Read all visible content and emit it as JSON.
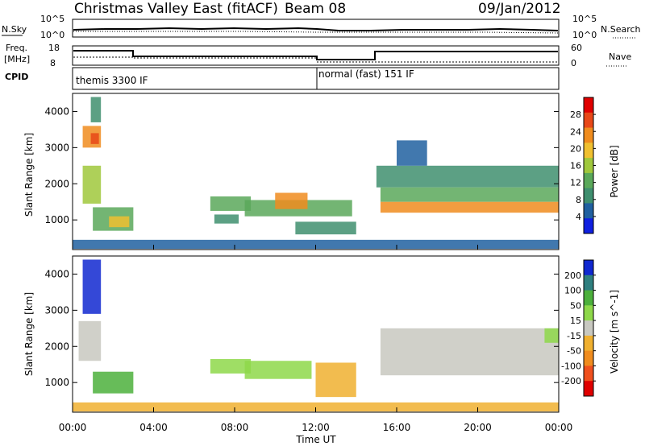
{
  "header": {
    "station": "Christmas Valley East (fitACF)",
    "beam": "Beam 08",
    "date": "09/Jan/2012"
  },
  "noise_panel": {
    "left_label": "N.Sky",
    "right_label": "N.Search",
    "left_ticks": [
      "10^5",
      "10^0"
    ],
    "right_ticks": [
      "10^5",
      "10^0"
    ]
  },
  "freq_panel": {
    "left_label_1": "Freq.",
    "left_label_2": "[MHz]",
    "left_ticks": [
      "18",
      "8"
    ],
    "right_label": "Nave",
    "right_ticks": [
      "60",
      "0"
    ]
  },
  "cpid_panel": {
    "label": "CPID",
    "modes": [
      {
        "name": "themis 3300 IF",
        "start_ut": 0,
        "end_ut": 12
      },
      {
        "name": "normal (fast) 151 IF",
        "start_ut": 12,
        "end_ut": 24
      }
    ]
  },
  "x_axis": {
    "label": "Time UT",
    "ticks": [
      "00:00",
      "04:00",
      "08:00",
      "12:00",
      "16:00",
      "20:00",
      "00:00"
    ]
  },
  "chart_data": [
    {
      "type": "heatmap",
      "ylabel": "Slant Range [km]",
      "ylim": [
        180,
        4500
      ],
      "xlim": [
        0,
        24
      ],
      "yticks": [
        1000,
        2000,
        3000,
        4000
      ],
      "colorbar": {
        "label": "Power [dB]",
        "ticks": [
          4,
          8,
          12,
          16,
          20,
          24,
          28
        ],
        "range": [
          0,
          32
        ],
        "colors": [
          "#1020e0",
          "#2060a0",
          "#3f8f6f",
          "#5aa85a",
          "#a0c83c",
          "#f0c030",
          "#f08c1e",
          "#e84818",
          "#e00000"
        ]
      },
      "regions": [
        {
          "t0": 0.5,
          "t1": 1.4,
          "r0": 1450,
          "r1": 2500,
          "value": 16
        },
        {
          "t0": 0.5,
          "t1": 1.4,
          "r0": 3000,
          "r1": 3600,
          "value": 24
        },
        {
          "t0": 0.9,
          "t1": 1.3,
          "r0": 3100,
          "r1": 3400,
          "value": 28
        },
        {
          "t0": 0.9,
          "t1": 1.4,
          "r0": 3700,
          "r1": 4400,
          "value": 8
        },
        {
          "t0": 1.0,
          "t1": 3.0,
          "r0": 700,
          "r1": 1350,
          "value": 12
        },
        {
          "t0": 1.8,
          "t1": 2.8,
          "r0": 800,
          "r1": 1100,
          "value": 20
        },
        {
          "t0": 6.8,
          "t1": 8.8,
          "r0": 1250,
          "r1": 1650,
          "value": 12
        },
        {
          "t0": 7.0,
          "t1": 8.2,
          "r0": 900,
          "r1": 1150,
          "value": 8
        },
        {
          "t0": 8.5,
          "t1": 13.8,
          "r0": 1100,
          "r1": 1550,
          "value": 14
        },
        {
          "t0": 10.0,
          "t1": 11.6,
          "r0": 1300,
          "r1": 1750,
          "value": 22
        },
        {
          "t0": 11.0,
          "t1": 14.0,
          "r0": 600,
          "r1": 950,
          "value": 8
        },
        {
          "t0": 15.0,
          "t1": 24.0,
          "r0": 1900,
          "r1": 2500,
          "value": 8
        },
        {
          "t0": 15.2,
          "t1": 24.0,
          "r0": 1500,
          "r1": 1900,
          "value": 14
        },
        {
          "t0": 15.2,
          "t1": 24.0,
          "r0": 1200,
          "r1": 1500,
          "value": 24
        },
        {
          "t0": 16.0,
          "t1": 17.5,
          "r0": 2500,
          "r1": 3200,
          "value": 6
        },
        {
          "t0": 0.0,
          "t1": 24.0,
          "r0": 200,
          "r1": 450,
          "value": 6
        }
      ]
    },
    {
      "type": "heatmap",
      "ylabel": "Slant Range [km]",
      "ylim": [
        180,
        4500
      ],
      "xlim": [
        0,
        24
      ],
      "yticks": [
        1000,
        2000,
        3000,
        4000
      ],
      "colorbar": {
        "label": "Velocity [m s^-1]",
        "ticks": [
          200,
          100,
          50,
          15,
          -15,
          -50,
          -100,
          -200
        ],
        "colors": [
          "#1028d0",
          "#2f7f7f",
          "#4cb03c",
          "#8ed84a",
          "#c8c8c0",
          "#f0b030",
          "#f08c1e",
          "#f0501e",
          "#e00000"
        ]
      },
      "regions": [
        {
          "t0": 0.5,
          "t1": 1.4,
          "r0": 2900,
          "r1": 4400,
          "value": 200
        },
        {
          "t0": 0.3,
          "t1": 1.4,
          "r0": 1600,
          "r1": 2700,
          "value": 0
        },
        {
          "t0": 1.0,
          "t1": 3.0,
          "r0": 700,
          "r1": 1300,
          "value": 75
        },
        {
          "t0": 6.8,
          "t1": 8.8,
          "r0": 1250,
          "r1": 1650,
          "value": 40
        },
        {
          "t0": 8.5,
          "t1": 11.8,
          "r0": 1100,
          "r1": 1600,
          "value": 40
        },
        {
          "t0": 12.0,
          "t1": 14.0,
          "r0": 600,
          "r1": 1550,
          "value": -40
        },
        {
          "t0": 15.2,
          "t1": 24.0,
          "r0": 1200,
          "r1": 2500,
          "value": 0
        },
        {
          "t0": 23.3,
          "t1": 24.0,
          "r0": 2100,
          "r1": 2500,
          "value": 40
        },
        {
          "t0": 0.0,
          "t1": 24.0,
          "r0": 200,
          "r1": 450,
          "value": -40
        }
      ]
    }
  ]
}
